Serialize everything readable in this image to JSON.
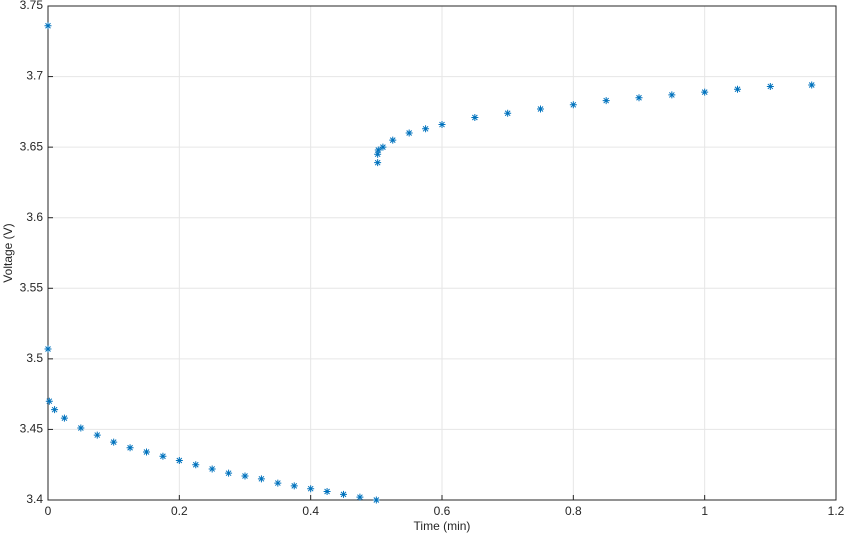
{
  "chart_data": {
    "type": "scatter",
    "xlabel": "Time (min)",
    "ylabel": "Voltage (V)",
    "x": [
      0,
      0,
      0.002,
      0.01,
      0.025,
      0.05,
      0.075,
      0.1,
      0.125,
      0.15,
      0.175,
      0.2,
      0.225,
      0.25,
      0.275,
      0.3,
      0.325,
      0.35,
      0.375,
      0.4,
      0.425,
      0.45,
      0.475,
      0.5,
      0.502,
      0.502,
      0.503,
      0.51,
      0.525,
      0.55,
      0.575,
      0.6,
      0.65,
      0.7,
      0.75,
      0.8,
      0.85,
      0.9,
      0.95,
      1.0,
      1.05,
      1.1,
      1.163
    ],
    "values": [
      3.736,
      3.507,
      3.47,
      3.464,
      3.458,
      3.451,
      3.446,
      3.441,
      3.437,
      3.434,
      3.431,
      3.428,
      3.425,
      3.422,
      3.419,
      3.417,
      3.415,
      3.412,
      3.41,
      3.408,
      3.406,
      3.404,
      3.402,
      3.4,
      3.639,
      3.645,
      3.648,
      3.65,
      3.655,
      3.66,
      3.663,
      3.666,
      3.671,
      3.674,
      3.677,
      3.68,
      3.683,
      3.685,
      3.687,
      3.689,
      3.691,
      3.693,
      3.694
    ],
    "color": "#0072bd",
    "xlim": [
      0,
      1.2
    ],
    "xticks": [
      0,
      0.2,
      0.4,
      0.6,
      0.8,
      1,
      1.2
    ],
    "ylim": [
      3.4,
      3.75
    ],
    "yticks": [
      3.4,
      3.45,
      3.5,
      3.55,
      3.6,
      3.65,
      3.7,
      3.75
    ],
    "grid": true
  }
}
